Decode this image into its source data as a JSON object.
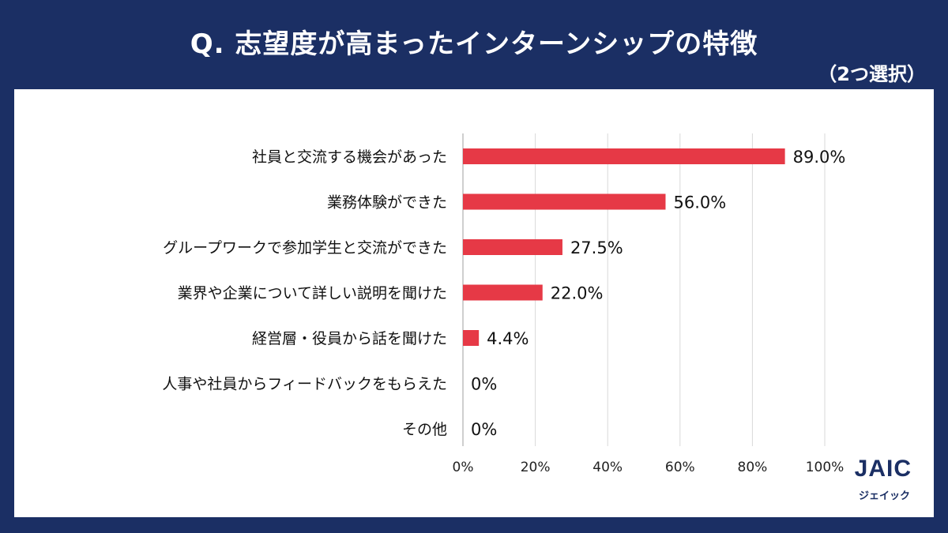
{
  "header": {
    "title": "Q. 志望度が高まったインターンシップの特徴",
    "subtitle": "（2つ選択）"
  },
  "logo": {
    "text": "JAIC",
    "sub": "ジェイック"
  },
  "colors": {
    "background": "#1b2f64",
    "bar": "#e63946",
    "grid": "#d9d9d9"
  },
  "chart_data": {
    "type": "bar",
    "orientation": "horizontal",
    "categories": [
      "社員と交流する機会があった",
      "業務体験ができた",
      "グループワークで参加学生と交流ができた",
      "業界や企業について詳しい説明を聞けた",
      "経営層・役員から話を聞けた",
      "人事や社員からフィードバックをもらえた",
      "その他"
    ],
    "values": [
      89.0,
      56.0,
      27.5,
      22.0,
      4.4,
      0,
      0
    ],
    "data_labels": [
      "89.0%",
      "56.0%",
      "27.5%",
      "22.0%",
      "4.4%",
      "0%",
      "0%"
    ],
    "xlim": [
      0,
      100
    ],
    "xticks": [
      "0%",
      "20%",
      "40%",
      "60%",
      "80%",
      "100%"
    ],
    "grid": true
  }
}
